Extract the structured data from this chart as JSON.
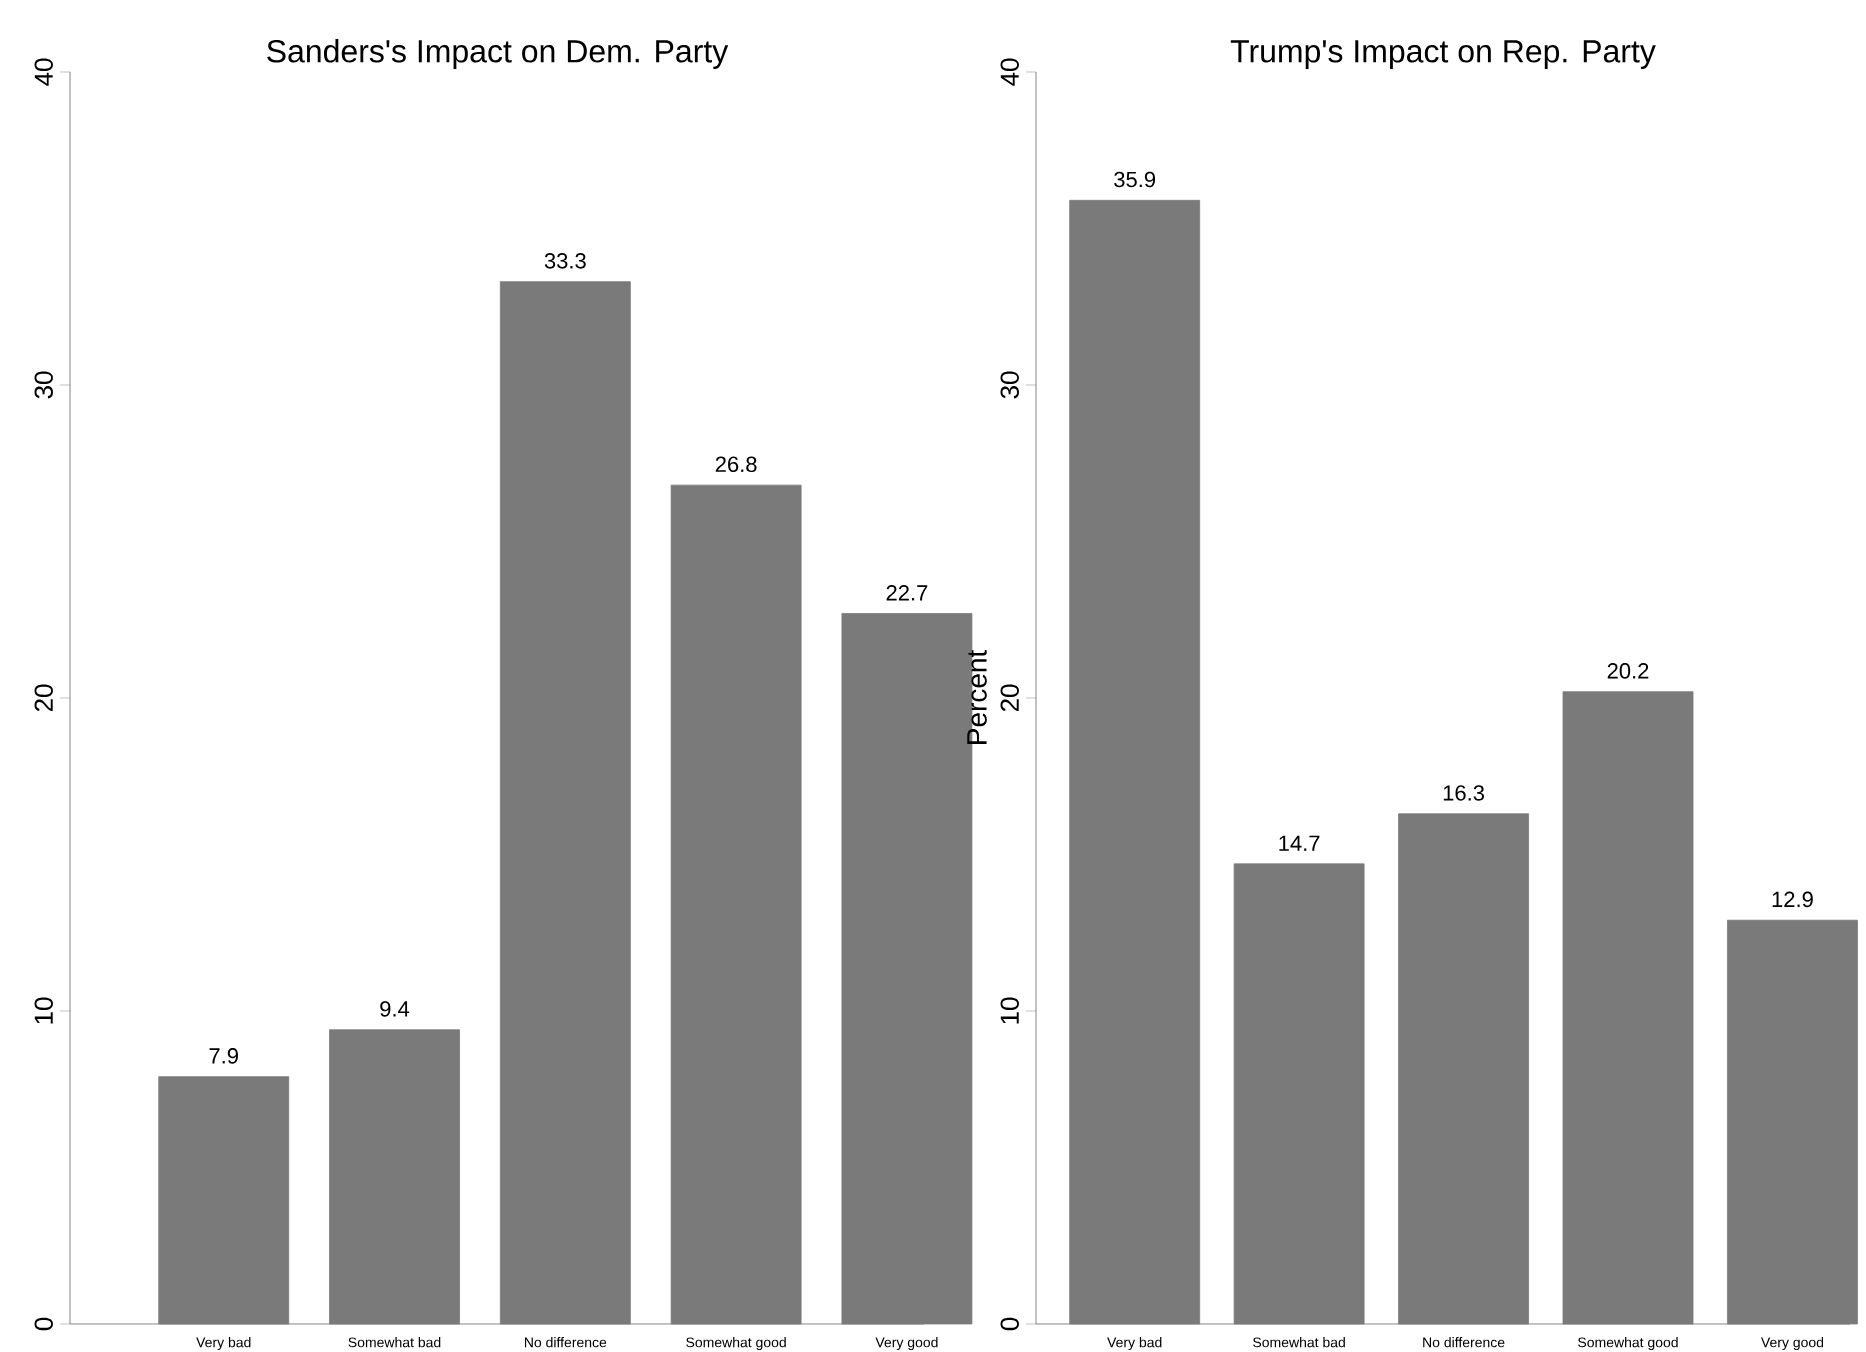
{
  "chart_data": [
    {
      "type": "bar",
      "title": "Sanders's Impact on Dem. Party",
      "categories": [
        "Very bad",
        "Somewhat bad",
        "No difference",
        "Somewhat good",
        "Very good"
      ],
      "values": [
        7.9,
        9.4,
        33.3,
        26.8,
        22.7
      ],
      "color": "#7a7a7a",
      "ylim": [
        0,
        40
      ],
      "yticks": [
        0,
        10,
        20,
        30,
        40
      ],
      "data_labels": true
    },
    {
      "type": "bar",
      "title": "Trump's Impact on Rep. Party",
      "ylabel": "Percent",
      "categories": [
        "Very bad",
        "Somewhat bad",
        "No difference",
        "Somewhat good",
        "Very good"
      ],
      "values": [
        35.9,
        14.7,
        16.3,
        20.2,
        12.9
      ],
      "color": "#7a7a7a",
      "ylim": [
        0,
        40
      ],
      "yticks": [
        0,
        10,
        20,
        30,
        40
      ],
      "data_labels": true
    }
  ]
}
